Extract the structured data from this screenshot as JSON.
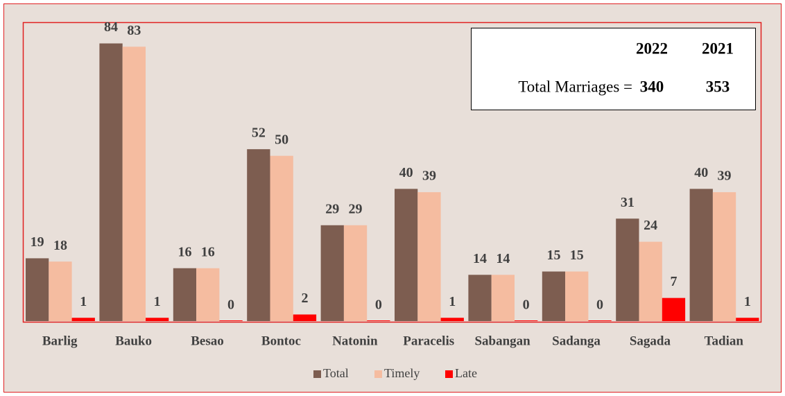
{
  "chart_data": {
    "type": "bar",
    "categories": [
      "Barlig",
      "Bauko",
      "Besao",
      "Bontoc",
      "Natonin",
      "Paracelis",
      "Sabangan",
      "Sadanga",
      "Sagada",
      "Tadian"
    ],
    "series": [
      {
        "name": "Total",
        "color": "#7d5d50",
        "values": [
          19,
          84,
          16,
          52,
          29,
          40,
          14,
          15,
          31,
          40
        ]
      },
      {
        "name": "Timely",
        "color": "#f5bca0",
        "values": [
          18,
          83,
          16,
          50,
          29,
          39,
          14,
          15,
          24,
          39
        ]
      },
      {
        "name": "Late",
        "color": "#ff0000",
        "values": [
          1,
          1,
          0,
          2,
          0,
          1,
          0,
          0,
          7,
          1
        ]
      }
    ],
    "ylim": [
      0,
      90
    ],
    "legend": "bottom",
    "annotation": {
      "headers": [
        "2022",
        "2021"
      ],
      "label": "Total Marriages =",
      "values": [
        340,
        353
      ]
    }
  }
}
